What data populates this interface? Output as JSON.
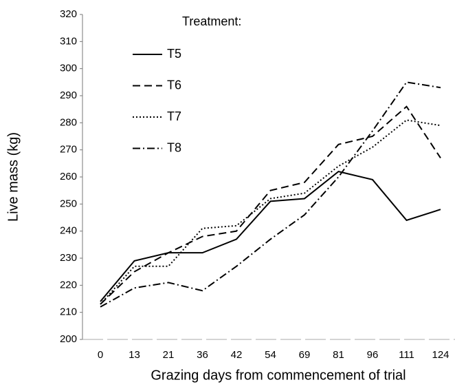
{
  "chart_data": {
    "type": "line",
    "legend_title": "Treatment:",
    "x_label": "Grazing days from commencement of trial",
    "y_label": "Live mass (kg)",
    "categories": [
      "0",
      "13",
      "21",
      "36",
      "42",
      "54",
      "69",
      "81",
      "96",
      "111",
      "124"
    ],
    "ylim": [
      200,
      320
    ],
    "yticks": [
      200,
      210,
      220,
      230,
      240,
      250,
      260,
      270,
      280,
      290,
      300,
      310,
      320
    ],
    "legend": "upper-left",
    "series": [
      {
        "name": "T5",
        "color": "#000000",
        "style": "solid",
        "values": [
          214,
          229,
          232,
          232,
          237,
          251,
          252,
          262,
          259,
          244,
          248
        ]
      },
      {
        "name": "T6",
        "color": "#000000",
        "style": "dashed",
        "values": [
          213,
          225,
          232,
          238,
          240,
          255,
          258,
          272,
          275,
          286,
          267
        ]
      },
      {
        "name": "T7",
        "color": "#000000",
        "style": "dotted",
        "values": [
          213,
          227,
          227,
          241,
          242,
          252,
          254,
          264,
          271,
          281,
          279
        ]
      },
      {
        "name": "T8",
        "color": "#000000",
        "style": "dashdot",
        "values": [
          212,
          219,
          221,
          218,
          227,
          237,
          246,
          260,
          277,
          295,
          293
        ]
      }
    ]
  }
}
